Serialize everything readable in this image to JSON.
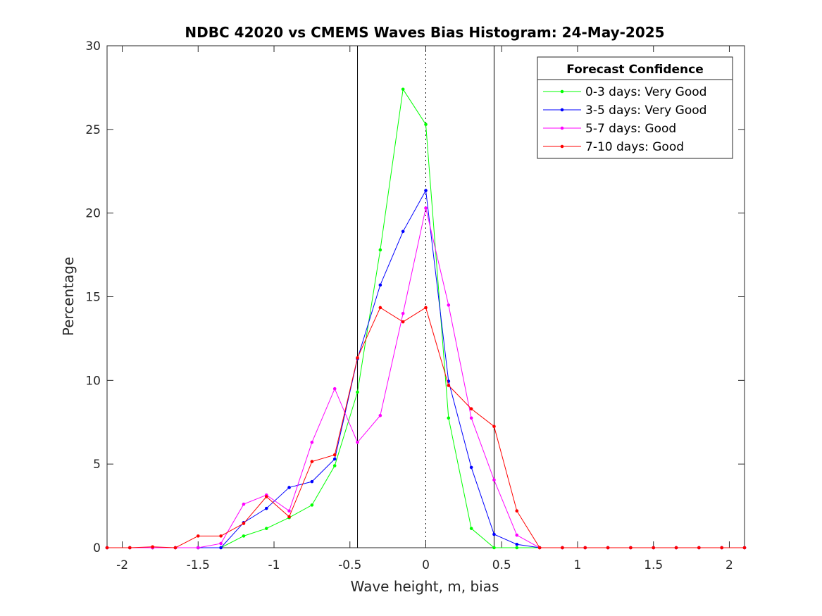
{
  "chart_data": {
    "type": "line",
    "title": "NDBC 42020 vs CMEMS Waves Bias Histogram: 24-May-2025",
    "xlabel": "Wave height, m, bias",
    "ylabel": "Percentage",
    "xlim": [
      -2.1,
      2.1
    ],
    "ylim": [
      0,
      30
    ],
    "xticks": [
      -2,
      -1.5,
      -1,
      -0.5,
      0,
      0.5,
      1,
      1.5,
      2
    ],
    "xtick_labels": [
      "-2",
      "-1.5",
      "-1",
      "-0.5",
      "0",
      "0.5",
      "1",
      "1.5",
      "2"
    ],
    "yticks": [
      0,
      5,
      10,
      15,
      20,
      25,
      30
    ],
    "ytick_labels": [
      "0",
      "5",
      "10",
      "15",
      "20",
      "25",
      "30"
    ],
    "grid": false,
    "legend_title": "Forecast Confidence",
    "legend_position": "top-right",
    "vertical_lines": [
      {
        "x": -0.45,
        "style": "solid"
      },
      {
        "x": 0,
        "style": "dotted"
      },
      {
        "x": 0.45,
        "style": "solid"
      }
    ],
    "x": [
      -2.1,
      -1.95,
      -1.8,
      -1.65,
      -1.5,
      -1.35,
      -1.2,
      -1.05,
      -0.9,
      -0.75,
      -0.6,
      -0.45,
      -0.3,
      -0.15,
      0,
      0.15,
      0.3,
      0.45,
      0.6,
      0.75,
      0.9,
      1.05,
      1.2,
      1.35,
      1.5,
      1.65,
      1.8,
      1.95,
      2.1
    ],
    "series": [
      {
        "name": "0-3 days: Very Good",
        "color": "#00ff00",
        "values": [
          0,
          0,
          0,
          0,
          0,
          0,
          0.7,
          1.15,
          1.8,
          2.55,
          4.9,
          9.3,
          17.8,
          27.4,
          25.3,
          7.75,
          1.15,
          0,
          0,
          0,
          0,
          0,
          0,
          0,
          0,
          0,
          0,
          0,
          0
        ]
      },
      {
        "name": "3-5 days: Very Good",
        "color": "#0000ff",
        "values": [
          0,
          0,
          0,
          0,
          0,
          0,
          1.5,
          2.35,
          3.6,
          3.95,
          5.3,
          11.3,
          15.7,
          18.9,
          21.35,
          9.95,
          4.8,
          0.8,
          0.2,
          0,
          0,
          0,
          0,
          0,
          0,
          0,
          0,
          0,
          0
        ]
      },
      {
        "name": "5-7 days: Good",
        "color": "#ff00ff",
        "values": [
          0,
          0,
          0,
          0,
          0,
          0.25,
          2.6,
          3.15,
          2.2,
          6.3,
          9.5,
          6.3,
          7.9,
          14.0,
          20.3,
          14.5,
          7.75,
          4.05,
          0.75,
          0,
          0,
          0,
          0,
          0,
          0,
          0,
          0,
          0,
          0
        ]
      },
      {
        "name": "7-10 days: Good",
        "color": "#ff0000",
        "values": [
          0,
          0,
          0.05,
          0,
          0.7,
          0.7,
          1.45,
          3.05,
          1.85,
          5.15,
          5.55,
          11.35,
          14.35,
          13.5,
          14.35,
          9.7,
          8.3,
          7.25,
          2.2,
          0,
          0,
          0,
          0,
          0,
          0,
          0,
          0,
          0,
          0
        ]
      }
    ]
  }
}
